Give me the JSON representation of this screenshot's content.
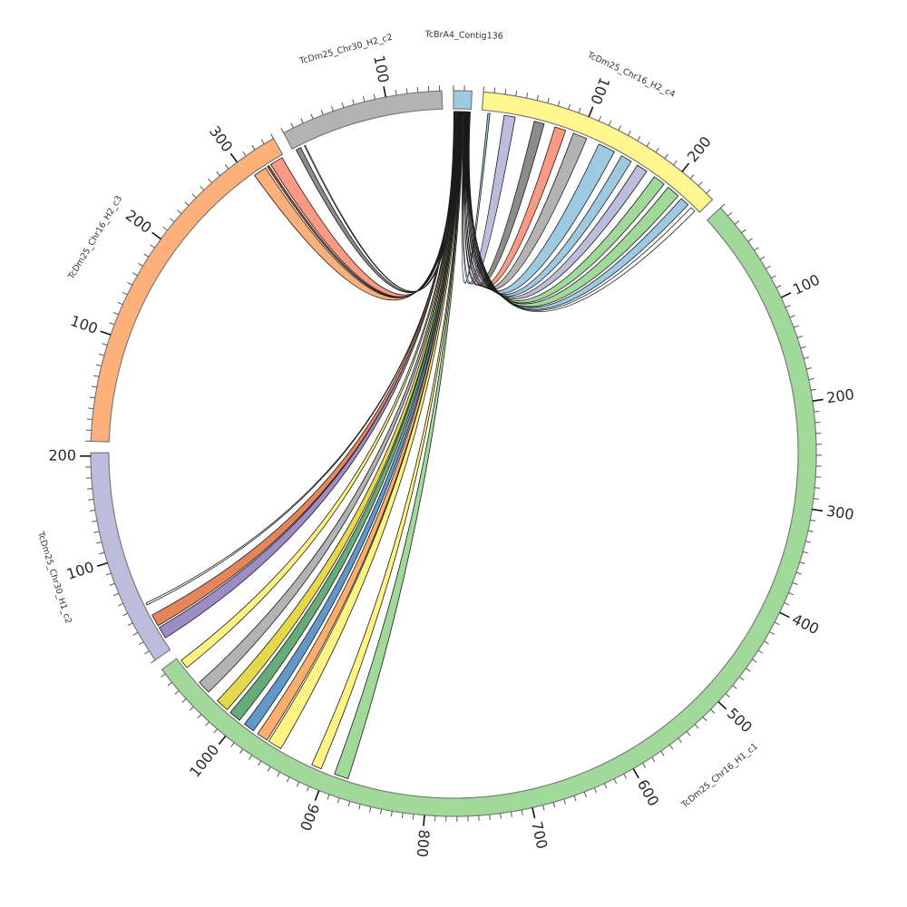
{
  "diagram": {
    "type": "circos",
    "major_tick_interval": 100,
    "minor_tick_interval": 10,
    "segments": [
      {
        "id": "contig",
        "name": "TcBrA4_Contig136",
        "length": 17,
        "color": "#9ecae1"
      },
      {
        "id": "c4",
        "name": "TcDm25_Chr16_H2_c4",
        "length": 238,
        "color": "#fff68f"
      },
      {
        "id": "c1",
        "name": "TcDm25_Chr16_H1_c1",
        "length": 1085,
        "color": "#a1d99b"
      },
      {
        "id": "h1c2",
        "name": "TcDm25_Chr30_H1_c2",
        "length": 203,
        "color": "#bcbddc"
      },
      {
        "id": "c3",
        "name": "TcDm25_Chr16_H2_c3",
        "length": 340,
        "color": "#fdb07a"
      },
      {
        "id": "h2c2",
        "name": "TcDm25_Chr30_H2_c2",
        "length": 152,
        "color": "#b3b3b3"
      }
    ],
    "links": [
      {
        "src": [
          0.3,
          0.8
        ],
        "target": "c3",
        "range": [
          306,
          319
        ],
        "color": "#fdb07a"
      },
      {
        "src": [
          0.8,
          1.0
        ],
        "target": "c3",
        "range": [
          321,
          323
        ],
        "color": "#c0502a"
      },
      {
        "src": [
          1.0,
          1.6
        ],
        "target": "c3",
        "range": [
          325,
          338
        ],
        "color": "#fb9a84"
      },
      {
        "src": [
          1.6,
          2.0
        ],
        "target": "h2c2",
        "range": [
          3,
          8
        ],
        "color": "#8c8c8c"
      },
      {
        "src": [
          2.0,
          2.2
        ],
        "target": "h2c2",
        "range": [
          12,
          13
        ],
        "color": "#ffffff"
      },
      {
        "src": [
          2.2,
          3.0
        ],
        "target": "h1c2",
        "range": [
          12,
          24
        ],
        "color": "#9e8cc4"
      },
      {
        "src": [
          3.0,
          3.8
        ],
        "target": "h1c2",
        "range": [
          26,
          38
        ],
        "color": "#e6855a"
      },
      {
        "src": [
          3.8,
          4.0
        ],
        "target": "h1c2",
        "range": [
          49,
          51
        ],
        "color": "#ffffff"
      },
      {
        "src": [
          4.0,
          4.7
        ],
        "target": "c1",
        "range": [
          1072,
          1081
        ],
        "color": "#fff383"
      },
      {
        "src": [
          4.7,
          5.4
        ],
        "target": "c1",
        "range": [
          1040,
          1053
        ],
        "color": "#b3b3b3"
      },
      {
        "src": [
          5.4,
          6.1
        ],
        "target": "c1",
        "range": [
          1015,
          1028
        ],
        "color": "#e5d84a"
      },
      {
        "src": [
          6.1,
          6.8
        ],
        "target": "c1",
        "range": [
          999,
          1011
        ],
        "color": "#66ab7a"
      },
      {
        "src": [
          6.8,
          7.5
        ],
        "target": "c1",
        "range": [
          982,
          993
        ],
        "color": "#6197c9"
      },
      {
        "src": [
          7.5,
          8.2
        ],
        "target": "c1",
        "range": [
          966,
          977
        ],
        "color": "#fdae6b"
      },
      {
        "src": [
          8.2,
          8.9
        ],
        "target": "c1",
        "range": [
          950,
          964
        ],
        "color": "#fff383"
      },
      {
        "src": [
          8.9,
          9.5
        ],
        "target": "c1",
        "range": [
          906,
          916
        ],
        "color": "#fff383"
      },
      {
        "src": [
          9.5,
          10.3
        ],
        "target": "c1",
        "range": [
          878,
          892
        ],
        "color": "#a1d99b"
      },
      {
        "src": [
          10.5,
          10.8
        ],
        "target": "c4",
        "range": [
          6,
          8
        ],
        "color": "#9ecae1"
      },
      {
        "src": [
          10.8,
          11.3
        ],
        "target": "c4",
        "range": [
          22,
          33
        ],
        "color": "#bcbddc"
      },
      {
        "src": [
          11.3,
          11.8
        ],
        "target": "c4",
        "range": [
          52,
          62
        ],
        "color": "#8c8c8c"
      },
      {
        "src": [
          11.8,
          12.3
        ],
        "target": "c4",
        "range": [
          73,
          84
        ],
        "color": "#fb9a84"
      },
      {
        "src": [
          12.3,
          12.9
        ],
        "target": "c4",
        "range": [
          92,
          106
        ],
        "color": "#b3b3b3"
      },
      {
        "src": [
          12.9,
          13.5
        ],
        "target": "c4",
        "range": [
          119,
          136
        ],
        "color": "#9ecae1"
      },
      {
        "src": [
          13.5,
          14.0
        ],
        "target": "c4",
        "range": [
          144,
          155
        ],
        "color": "#9ecae1"
      },
      {
        "src": [
          14.0,
          14.5
        ],
        "target": "c4",
        "range": [
          162,
          173
        ],
        "color": "#bcbddc"
      },
      {
        "src": [
          14.5,
          15.0
        ],
        "target": "c4",
        "range": [
          182,
          194
        ],
        "color": "#a1d99b"
      },
      {
        "src": [
          15.0,
          15.6
        ],
        "target": "c4",
        "range": [
          199,
          212
        ],
        "color": "#a1d99b"
      },
      {
        "src": [
          15.6,
          16.1
        ],
        "target": "c4",
        "range": [
          216,
          225
        ],
        "color": "#9ecae1"
      },
      {
        "src": [
          16.1,
          16.4
        ],
        "target": "c4",
        "range": [
          229,
          234
        ],
        "color": "#ffffff"
      }
    ]
  }
}
